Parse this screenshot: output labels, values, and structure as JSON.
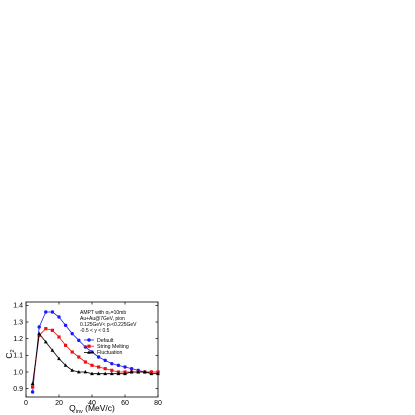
{
  "chart_data": {
    "type": "line",
    "xlabel_main": "Q",
    "xlabel_sub": "inv",
    "xlabel_unit": " (MeV/c)",
    "ylabel_main": "C",
    "ylabel_sub": "2",
    "xlim": [
      0,
      80
    ],
    "ylim": [
      0.85,
      1.42
    ],
    "x_ticks": [
      0,
      20,
      40,
      60,
      80
    ],
    "y_ticks": [
      0.9,
      1.0,
      1.1,
      1.2,
      1.3,
      1.4
    ],
    "x_tick_labels": [
      "0",
      "20",
      "40",
      "60",
      "80"
    ],
    "y_tick_labels": [
      "0.9",
      "1.0",
      "1.1",
      "1.2",
      "1.3",
      "1.4"
    ],
    "annotation_lines": [
      "AMPT with σₚ=10mb",
      "Au+Au@7GeV, pion",
      "0.125GeV< pₜ<0.225GeV",
      "-0.5 < y < 0.5"
    ],
    "series": [
      {
        "name": "Default",
        "color": "#1a1aff",
        "marker": "circle",
        "x": [
          4,
          8,
          12,
          16,
          20,
          24,
          28,
          32,
          36,
          40,
          44,
          48,
          52,
          56,
          60,
          64,
          68,
          72,
          76,
          80
        ],
        "y": [
          0.88,
          1.27,
          1.36,
          1.36,
          1.33,
          1.28,
          1.23,
          1.19,
          1.15,
          1.12,
          1.09,
          1.07,
          1.05,
          1.04,
          1.03,
          1.02,
          1.01,
          1.0,
          1.0,
          1.0
        ]
      },
      {
        "name": "String Melting",
        "color": "#ee1111",
        "marker": "square",
        "x": [
          4,
          8,
          12,
          16,
          20,
          24,
          28,
          32,
          36,
          40,
          44,
          48,
          52,
          56,
          60,
          64,
          68,
          72,
          76,
          80
        ],
        "y": [
          0.91,
          1.22,
          1.26,
          1.25,
          1.21,
          1.16,
          1.12,
          1.09,
          1.06,
          1.04,
          1.03,
          1.02,
          1.01,
          1.0,
          1.0,
          1.0,
          1.0,
          1.0,
          1.0,
          1.0
        ]
      },
      {
        "name": "Fluctuation",
        "color": "#000000",
        "marker": "triangle",
        "x": [
          4,
          8,
          12,
          16,
          20,
          24,
          28,
          32,
          36,
          40,
          44,
          48,
          52,
          56,
          60,
          64,
          68,
          72,
          76,
          80
        ],
        "y": [
          0.93,
          1.23,
          1.18,
          1.13,
          1.08,
          1.04,
          1.01,
          1.0,
          1.0,
          0.99,
          0.99,
          0.99,
          0.99,
          0.99,
          0.99,
          1.0,
          1.0,
          1.0,
          0.99,
          0.99
        ]
      }
    ]
  }
}
